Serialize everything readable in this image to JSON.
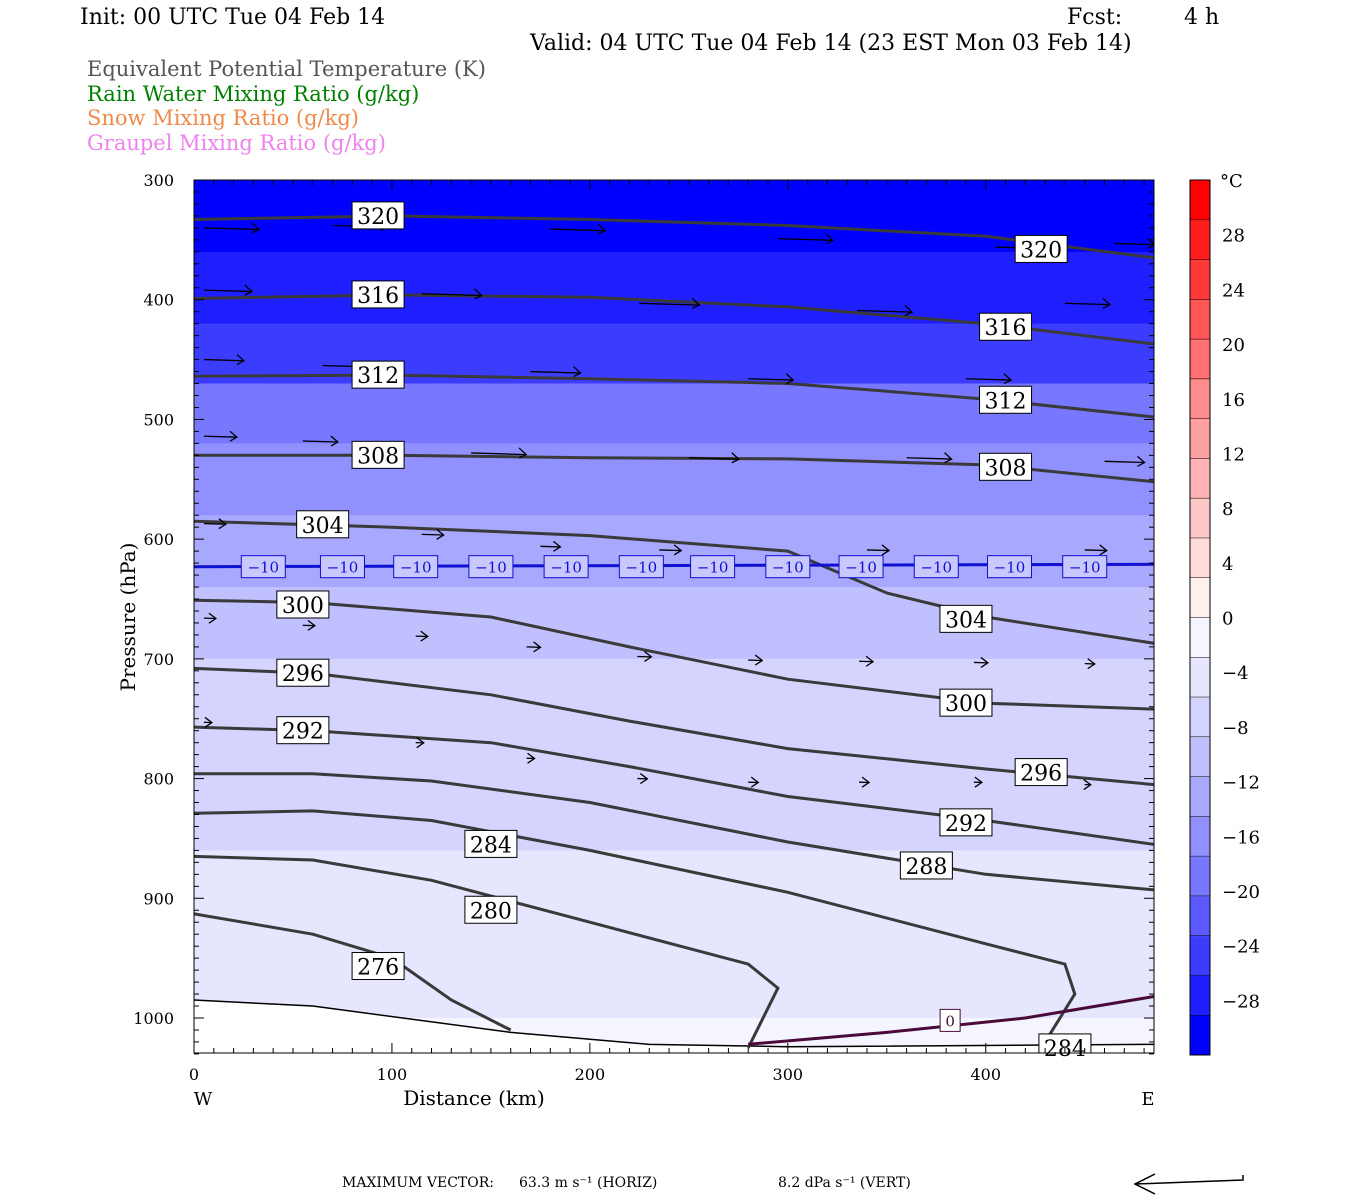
{
  "header": {
    "init": "Init: 00 UTC Tue 04 Feb 14",
    "fcst_label": "Fcst:",
    "fcst_value": "4 h",
    "valid": "Valid: 04 UTC Tue 04 Feb 14 (23 EST Mon 03 Feb 14)"
  },
  "legend": [
    {
      "label": "Equivalent Potential Temperature (K)",
      "color": "#555555"
    },
    {
      "label": "Rain Water Mixing Ratio (g/kg)",
      "color": "#008000"
    },
    {
      "label": "Snow Mixing Ratio (g/kg)",
      "color": "#f08a4b"
    },
    {
      "label": "Graupel Mixing Ratio (g/kg)",
      "color": "#ee82ee"
    }
  ],
  "footer": {
    "max_vector_label": "MAXIMUM VECTOR:",
    "horiz": "63.3 m s⁻¹ (HORIZ)",
    "vert": "8.2 dPa s⁻¹ (VERT)"
  },
  "chart_data": {
    "type": "heatmap",
    "xlabel": "Distance (km)",
    "ylabel": "Pressure (hPa)",
    "x_ticks": [
      0,
      100,
      200,
      300,
      400
    ],
    "y_ticks": [
      300,
      400,
      500,
      600,
      700,
      800,
      900,
      1000
    ],
    "xlim": [
      0,
      485
    ],
    "ylim": [
      300,
      1030
    ],
    "y_inverted": true,
    "left_end_label": "W",
    "right_end_label": "E",
    "colorbar": {
      "unit": "°C",
      "tick_labels": [
        "28",
        "24",
        "20",
        "16",
        "12",
        "8",
        "4",
        "0",
        "−4",
        "−8",
        "−12",
        "−16",
        "−20",
        "−24",
        "−28"
      ],
      "min": -32,
      "max": 32,
      "step": 4,
      "colors": [
        "#0000ff",
        "#1e1eff",
        "#3c3cff",
        "#5a5aff",
        "#7878ff",
        "#9090ff",
        "#a8a8ff",
        "#c0c0ff",
        "#d4d4ff",
        "#e6e6ff",
        "#f5f5ff",
        "#fff0f0",
        "#ffdcdc",
        "#ffc8c8",
        "#ffb4b4",
        "#ffa0a0",
        "#ff8c8c",
        "#ff7070",
        "#ff5555",
        "#ff3838",
        "#ff1c1c",
        "#ff0000"
      ]
    },
    "temperature_field_bands": [
      {
        "p": 300,
        "t": -30
      },
      {
        "p": 360,
        "t": -28
      },
      {
        "p": 420,
        "t": -24
      },
      {
        "p": 470,
        "t": -20
      },
      {
        "p": 520,
        "t": -16
      },
      {
        "p": 580,
        "t": -12
      },
      {
        "p": 640,
        "t": -10
      },
      {
        "p": 700,
        "t": -8
      },
      {
        "p": 780,
        "t": -6
      },
      {
        "p": 860,
        "t": -5
      },
      {
        "p": 940,
        "t": -4
      },
      {
        "p": 1000,
        "t": -2
      }
    ],
    "theta_e_contours": [
      {
        "label": "320",
        "points": [
          [
            0,
            333
          ],
          [
            100,
            330
          ],
          [
            200,
            333
          ],
          [
            300,
            338
          ],
          [
            400,
            347
          ],
          [
            485,
            365
          ]
        ],
        "label_pos": [
          [
            93,
            330
          ],
          [
            428,
            358
          ]
        ]
      },
      {
        "label": "316",
        "points": [
          [
            0,
            399
          ],
          [
            100,
            396
          ],
          [
            200,
            398
          ],
          [
            300,
            406
          ],
          [
            400,
            420
          ],
          [
            485,
            437
          ]
        ],
        "label_pos": [
          [
            93,
            396
          ],
          [
            410,
            423
          ]
        ]
      },
      {
        "label": "312",
        "points": [
          [
            0,
            464
          ],
          [
            100,
            463
          ],
          [
            200,
            466
          ],
          [
            300,
            470
          ],
          [
            400,
            483
          ],
          [
            485,
            498
          ]
        ],
        "label_pos": [
          [
            93,
            463
          ],
          [
            410,
            484
          ]
        ]
      },
      {
        "label": "308",
        "points": [
          [
            0,
            530
          ],
          [
            100,
            530
          ],
          [
            200,
            532
          ],
          [
            300,
            533
          ],
          [
            400,
            538
          ],
          [
            485,
            552
          ]
        ],
        "label_pos": [
          [
            93,
            530
          ],
          [
            410,
            540
          ]
        ]
      },
      {
        "label": "304",
        "points": [
          [
            0,
            585
          ],
          [
            100,
            590
          ],
          [
            200,
            597
          ],
          [
            300,
            610
          ],
          [
            350,
            645
          ],
          [
            400,
            665
          ],
          [
            485,
            687
          ]
        ],
        "label_pos": [
          [
            65,
            588
          ],
          [
            390,
            667
          ]
        ]
      },
      {
        "label": "300",
        "points": [
          [
            0,
            651
          ],
          [
            60,
            653
          ],
          [
            150,
            665
          ],
          [
            220,
            690
          ],
          [
            300,
            717
          ],
          [
            400,
            737
          ],
          [
            485,
            742
          ]
        ],
        "label_pos": [
          [
            55,
            655
          ],
          [
            390,
            737
          ]
        ]
      },
      {
        "label": "296",
        "points": [
          [
            0,
            708
          ],
          [
            60,
            712
          ],
          [
            150,
            730
          ],
          [
            220,
            752
          ],
          [
            300,
            775
          ],
          [
            400,
            792
          ],
          [
            485,
            805
          ]
        ],
        "label_pos": [
          [
            55,
            712
          ],
          [
            428,
            795
          ]
        ]
      },
      {
        "label": "292",
        "points": [
          [
            0,
            757
          ],
          [
            60,
            760
          ],
          [
            150,
            770
          ],
          [
            220,
            790
          ],
          [
            300,
            815
          ],
          [
            400,
            835
          ],
          [
            485,
            855
          ]
        ],
        "label_pos": [
          [
            55,
            760
          ],
          [
            390,
            837
          ]
        ]
      },
      {
        "label": "288",
        "points": [
          [
            0,
            796
          ],
          [
            60,
            796
          ],
          [
            120,
            802
          ],
          [
            200,
            820
          ],
          [
            300,
            853
          ],
          [
            400,
            880
          ],
          [
            485,
            893
          ]
        ],
        "label_pos": [
          [
            370,
            873
          ]
        ]
      },
      {
        "label": "284",
        "points": [
          [
            0,
            829
          ],
          [
            60,
            827
          ],
          [
            120,
            835
          ],
          [
            200,
            860
          ],
          [
            300,
            895
          ],
          [
            400,
            938
          ],
          [
            440,
            955
          ],
          [
            445,
            980
          ],
          [
            430,
            1020
          ]
        ],
        "label_pos": [
          [
            150,
            855
          ],
          [
            440,
            1025
          ]
        ]
      },
      {
        "label": "280",
        "points": [
          [
            0,
            865
          ],
          [
            60,
            868
          ],
          [
            120,
            885
          ],
          [
            200,
            920
          ],
          [
            280,
            955
          ],
          [
            295,
            975
          ],
          [
            280,
            1025
          ]
        ],
        "label_pos": [
          [
            150,
            910
          ]
        ]
      },
      {
        "label": "276",
        "points": [
          [
            0,
            913
          ],
          [
            60,
            930
          ],
          [
            100,
            950
          ],
          [
            130,
            985
          ],
          [
            160,
            1010
          ]
        ],
        "label_pos": [
          [
            93,
            957
          ]
        ]
      }
    ],
    "isotherm_minus10": {
      "label": "−10",
      "points": [
        [
          0,
          623
        ],
        [
          485,
          621
        ]
      ],
      "label_x": [
        35,
        75,
        112,
        150,
        188,
        226,
        262,
        300,
        337,
        375,
        412,
        450
      ]
    },
    "isotherm_zero": {
      "label": "0",
      "points": [
        [
          280,
          1022
        ],
        [
          350,
          1012
        ],
        [
          420,
          1000
        ],
        [
          485,
          982
        ]
      ],
      "label_pos": [
        382,
        1002
      ]
    },
    "wind_vectors": [
      {
        "x": 5,
        "p": 340,
        "len": 55
      },
      {
        "x": 70,
        "p": 338,
        "len": 55
      },
      {
        "x": 180,
        "p": 341,
        "len": 55
      },
      {
        "x": 295,
        "p": 349,
        "len": 55
      },
      {
        "x": 405,
        "p": 356,
        "len": 55
      },
      {
        "x": 465,
        "p": 353,
        "len": 40
      },
      {
        "x": 5,
        "p": 392,
        "len": 48
      },
      {
        "x": 115,
        "p": 395,
        "len": 60
      },
      {
        "x": 225,
        "p": 403,
        "len": 60
      },
      {
        "x": 335,
        "p": 409,
        "len": 55
      },
      {
        "x": 440,
        "p": 403,
        "len": 45
      },
      {
        "x": 5,
        "p": 450,
        "len": 40
      },
      {
        "x": 65,
        "p": 455,
        "len": 45
      },
      {
        "x": 170,
        "p": 460,
        "len": 50
      },
      {
        "x": 280,
        "p": 466,
        "len": 45
      },
      {
        "x": 390,
        "p": 466,
        "len": 45
      },
      {
        "x": 5,
        "p": 514,
        "len": 33
      },
      {
        "x": 55,
        "p": 518,
        "len": 35
      },
      {
        "x": 140,
        "p": 528,
        "len": 55
      },
      {
        "x": 250,
        "p": 532,
        "len": 50
      },
      {
        "x": 360,
        "p": 532,
        "len": 45
      },
      {
        "x": 460,
        "p": 535,
        "len": 40
      },
      {
        "x": 5,
        "p": 587,
        "len": 22
      },
      {
        "x": 115,
        "p": 596,
        "len": 22
      },
      {
        "x": 175,
        "p": 606,
        "len": 20
      },
      {
        "x": 235,
        "p": 609,
        "len": 22
      },
      {
        "x": 340,
        "p": 609,
        "len": 22
      },
      {
        "x": 450,
        "p": 609,
        "len": 22
      },
      {
        "x": 5,
        "p": 666,
        "len": 12
      },
      {
        "x": 55,
        "p": 672,
        "len": 12
      },
      {
        "x": 112,
        "p": 681,
        "len": 12
      },
      {
        "x": 168,
        "p": 690,
        "len": 14
      },
      {
        "x": 224,
        "p": 698,
        "len": 14
      },
      {
        "x": 280,
        "p": 701,
        "len": 14
      },
      {
        "x": 336,
        "p": 702,
        "len": 14
      },
      {
        "x": 394,
        "p": 703,
        "len": 14
      },
      {
        "x": 450,
        "p": 704,
        "len": 10
      },
      {
        "x": 5,
        "p": 753,
        "len": 8
      },
      {
        "x": 112,
        "p": 770,
        "len": 8
      },
      {
        "x": 168,
        "p": 783,
        "len": 8
      },
      {
        "x": 224,
        "p": 800,
        "len": 10
      },
      {
        "x": 280,
        "p": 803,
        "len": 10
      },
      {
        "x": 336,
        "p": 803,
        "len": 10
      },
      {
        "x": 394,
        "p": 803,
        "len": 8
      },
      {
        "x": 450,
        "p": 805,
        "len": 6
      }
    ]
  }
}
